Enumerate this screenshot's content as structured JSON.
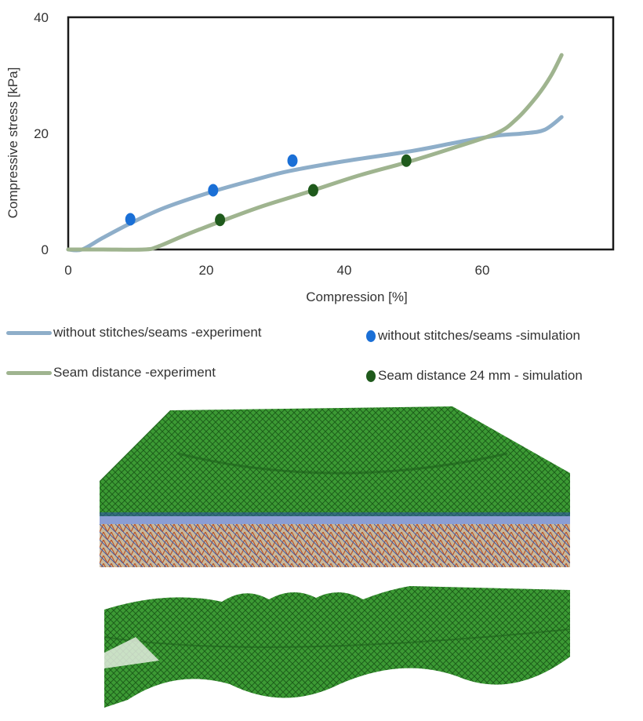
{
  "chart_data": {
    "type": "line",
    "xlabel": "Compression  [%]",
    "ylabel": "Compressive  stress [kPa]",
    "xlim": [
      0,
      80
    ],
    "ylim": [
      0,
      40
    ],
    "xticks": [
      "0",
      "20",
      "40",
      "60"
    ],
    "yticks": [
      "0",
      "20",
      "40"
    ],
    "grid": false,
    "legend_position": "bottom",
    "series": [
      {
        "name": "without stitches/seams -experiment",
        "kind": "line",
        "color": "#8eaec9",
        "x": [
          0,
          2,
          5,
          9,
          14,
          21,
          27,
          32,
          40,
          50,
          57,
          62,
          66,
          69,
          71.5
        ],
        "y": [
          0,
          0,
          2,
          4.5,
          7.2,
          10,
          12,
          13.5,
          15.2,
          17,
          18.6,
          19.6,
          20,
          20.6,
          22.8
        ]
      },
      {
        "name": "Seam distance -experiment",
        "kind": "line",
        "color": "#9fb48f",
        "x": [
          0,
          5,
          11,
          13,
          17,
          22,
          28,
          35,
          42,
          49,
          55,
          62,
          65,
          68,
          70,
          71.5
        ],
        "y": [
          0,
          0,
          0,
          0.5,
          2.5,
          4.8,
          7.4,
          10,
          12.7,
          15,
          17.2,
          20,
          22.5,
          26.5,
          30,
          33.5
        ]
      },
      {
        "name": "without stitches/seams -simulation",
        "kind": "scatter",
        "color": "#1a6fd6",
        "x": [
          9,
          21,
          32.5
        ],
        "y": [
          5.2,
          10.2,
          15.3
        ]
      },
      {
        "name": "Seam distance 24 mm - simulation",
        "kind": "scatter",
        "color": "#1f5a1c",
        "x": [
          22,
          35.5,
          49
        ],
        "y": [
          5.1,
          10.2,
          15.3
        ]
      }
    ]
  },
  "colors": {
    "mesh_green": "#2f8a2a",
    "mesh_blue": "#2c4fb0",
    "mesh_red": "#b8552a"
  }
}
